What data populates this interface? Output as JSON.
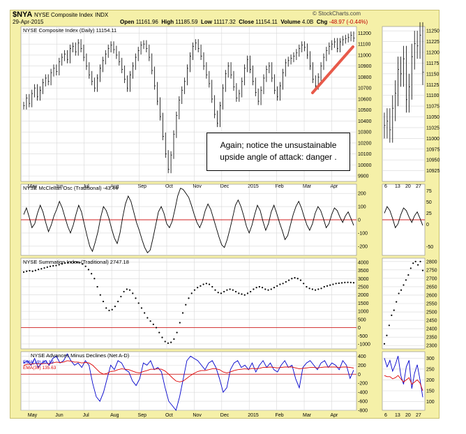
{
  "header": {
    "symbol": "$NYA",
    "index_name": "NYSE Composite Index",
    "exchange": "INDX",
    "date": "29-Apr-2015",
    "open_label": "Open",
    "open_value": "11161.96",
    "high_label": "High",
    "high_value": "11185.59",
    "low_label": "Low",
    "low_value": "11117.32",
    "close_label": "Close",
    "close_value": "11154.11",
    "volume_label": "Volume",
    "volume_value": "4.0B",
    "chg_label": "Chg",
    "chg_value": "-48.97 (-0.44%)",
    "brand": "© StockCharts.com"
  },
  "annotation": {
    "line1": "Again; notice the unsustainable",
    "line2": "upside angle of attack: danger ."
  },
  "colors": {
    "panel_bg": "#f5f0a8",
    "plot_bg": "#ffffff",
    "price": "#000000",
    "zero_line": "#d02020",
    "arrow": "#e85a4a",
    "ema19": "#0000cc",
    "ema39": "#dd0000"
  },
  "chart_data": [
    {
      "type": "ohlc",
      "title": "NYSE Composite Index (Daily) 11154.11",
      "timeframe": "daily",
      "x_labels": [
        "May",
        "Jun",
        "Jul",
        "Aug",
        "Sep",
        "Oct",
        "Nov",
        "Dec",
        "2015",
        "Feb",
        "Mar",
        "Apr"
      ],
      "yticks": [
        9900,
        10000,
        10100,
        10200,
        10300,
        10400,
        10500,
        10600,
        10700,
        10800,
        10900,
        11000,
        11100,
        11200
      ],
      "ylim": [
        9850,
        11260
      ],
      "series": [
        {
          "name": "close",
          "values": [
            10540,
            10610,
            10560,
            10650,
            10700,
            10620,
            10680,
            10750,
            10790,
            10760,
            10840,
            10880,
            10850,
            10940,
            10980,
            11010,
            10960,
            11060,
            11080,
            11030,
            11110,
            11060,
            10980,
            10900,
            10820,
            10760,
            10700,
            10790,
            10880,
            10950,
            11010,
            11060,
            11090,
            11050,
            11000,
            10940,
            10870,
            10780,
            10700,
            10820,
            10900,
            10980,
            11040,
            11090,
            11100,
            11060,
            10980,
            10860,
            10720,
            10580,
            10440,
            10260,
            10100,
            9960,
            10090,
            10280,
            10450,
            10590,
            10680,
            10760,
            10880,
            10990,
            11080,
            11110,
            11060,
            10990,
            10900,
            10820,
            10740,
            10600,
            10460,
            10380,
            10540,
            10700,
            10830,
            10900,
            10820,
            10710,
            10610,
            10650,
            10760,
            10880,
            10960,
            10870,
            10760,
            10660,
            10580,
            10680,
            10790,
            10870,
            10900,
            10790,
            10680,
            10620,
            10720,
            10840,
            10930,
            10950,
            10970,
            10990,
            11020,
            11060,
            11090,
            11070,
            11000,
            10900,
            10780,
            10720,
            10800,
            10900,
            10980,
            11040,
            11080,
            11100,
            11120,
            11060,
            11120,
            11140,
            11150,
            11160,
            11180,
            11154
          ]
        }
      ]
    },
    {
      "type": "ohlc",
      "title": "",
      "timeframe": "weekly",
      "x_labels": [
        "6",
        "13",
        "20",
        "27"
      ],
      "yticks": [
        10925,
        10950,
        10975,
        11000,
        11025,
        11050,
        11075,
        11100,
        11125,
        11150,
        11175,
        11200,
        11225,
        11250
      ],
      "ylim": [
        10900,
        11260
      ],
      "series": [
        {
          "name": "close",
          "values": [
            11030,
            11040,
            11020,
            11070,
            11105,
            11160,
            11150,
            11185,
            11090,
            11120,
            11190,
            11220,
            11215,
            11240,
            11154
          ]
        }
      ]
    },
    {
      "type": "line",
      "title": "NYSE McClellan Osc (Traditional) -43.44",
      "yticks": [
        -200,
        -100,
        0,
        100,
        200
      ],
      "ylim": [
        -270,
        270
      ],
      "series": [
        {
          "name": "McClellan Osc",
          "values": [
            40,
            90,
            20,
            -60,
            -30,
            50,
            110,
            60,
            -20,
            -90,
            -40,
            30,
            80,
            140,
            90,
            20,
            -50,
            -100,
            -40,
            40,
            110,
            60,
            -30,
            -120,
            -200,
            -240,
            -170,
            -90,
            20,
            100,
            70,
            10,
            -70,
            -140,
            -180,
            -100,
            20,
            120,
            180,
            140,
            60,
            -20,
            -80,
            -150,
            -210,
            -250,
            -230,
            -140,
            -40,
            60,
            100,
            50,
            -30,
            -60,
            -10,
            80,
            180,
            240,
            230,
            200,
            170,
            110,
            40,
            -20,
            -60,
            -10,
            70,
            120,
            80,
            10,
            -60,
            -130,
            -190,
            -210,
            -150,
            -70,
            20,
            110,
            150,
            100,
            30,
            -50,
            -100,
            -40,
            40,
            110,
            70,
            -10,
            -80,
            -30,
            60,
            110,
            50,
            -20,
            -80,
            -150,
            -120,
            -40,
            40,
            100,
            140,
            90,
            20,
            -40,
            -80,
            -30,
            50,
            100,
            70,
            10,
            -60,
            -30,
            40,
            90,
            70,
            20,
            -20,
            30,
            60,
            10,
            -43
          ]
        }
      ]
    },
    {
      "type": "scatter",
      "title": "NYSE Summation Index (Traditional) 2747.18",
      "yticks": [
        -1000,
        -500,
        0,
        500,
        1000,
        1500,
        2000,
        2500,
        3000,
        3500,
        4000
      ],
      "ylim": [
        -1300,
        4250
      ],
      "series": [
        {
          "name": "Summation Index",
          "values": [
            3400,
            3450,
            3480,
            3450,
            3500,
            3560,
            3600,
            3650,
            3700,
            3750,
            3780,
            3800,
            3850,
            3900,
            3950,
            3980,
            4000,
            4000,
            4000,
            3980,
            3900,
            3750,
            3550,
            3300,
            3000,
            2500,
            2000,
            1600,
            1200,
            1050,
            1100,
            1300,
            1600,
            1900,
            2200,
            2350,
            2300,
            2100,
            1800,
            1500,
            1200,
            900,
            600,
            400,
            200,
            0,
            -300,
            -600,
            -850,
            -950,
            -900,
            -700,
            -300,
            300,
            900,
            1400,
            1800,
            2100,
            2300,
            2450,
            2550,
            2650,
            2700,
            2650,
            2500,
            2300,
            2150,
            2100,
            2200,
            2300,
            2350,
            2300,
            2200,
            2100,
            2050,
            2000,
            2100,
            2200,
            2350,
            2450,
            2500,
            2450,
            2350,
            2300,
            2350,
            2450,
            2550,
            2650,
            2700,
            2800,
            2900,
            3000,
            3050,
            3000,
            2900,
            2700,
            2500,
            2400,
            2350,
            2300,
            2350,
            2400,
            2500,
            2550,
            2600,
            2650,
            2700,
            2720,
            2740,
            2760,
            2770,
            2760,
            2747
          ]
        }
      ]
    },
    {
      "type": "scatter",
      "title": "",
      "yticks": [
        2300,
        2350,
        2400,
        2450,
        2500,
        2550,
        2600,
        2650,
        2700,
        2750,
        2800
      ],
      "ylim": [
        2280,
        2820
      ],
      "series": [
        {
          "name": "Summation Index",
          "values": [
            2310,
            2360,
            2420,
            2480,
            2510,
            2560,
            2610,
            2630,
            2660,
            2690,
            2720,
            2760,
            2790,
            2800,
            2780,
            2800,
            2747
          ]
        }
      ]
    },
    {
      "type": "line",
      "title": "NYSE Advances Minus Declines (Net A-D)",
      "yticks": [
        -800,
        -600,
        -400,
        -200,
        0,
        200,
        400
      ],
      "ylim": [
        -800,
        500
      ],
      "series": [
        {
          "name": "EMA(19) 92.19",
          "values": [
            250,
            300,
            200,
            350,
            150,
            250,
            300,
            200,
            350,
            400,
            250,
            300,
            450,
            300,
            200,
            250,
            150,
            300,
            200,
            -200,
            -500,
            -600,
            -400,
            -100,
            200,
            100,
            300,
            250,
            100,
            50,
            -150,
            -250,
            -100,
            250,
            200,
            300,
            100,
            150,
            50,
            -300,
            -600,
            -700,
            -800,
            -500,
            -100,
            300,
            400,
            350,
            300,
            200,
            100,
            250,
            300,
            150,
            -100,
            -400,
            -300,
            100,
            250,
            300,
            150,
            200,
            100,
            250,
            50,
            200,
            300,
            150,
            250,
            100,
            50,
            200,
            300,
            150,
            200,
            -100,
            -300,
            150,
            250,
            300,
            200,
            100,
            250,
            300,
            150,
            250,
            200,
            100,
            300,
            200,
            -92,
            92
          ]
        },
        {
          "name": "EMA(39) 135.63",
          "values": [
            200,
            220,
            220,
            240,
            230,
            230,
            240,
            230,
            250,
            270,
            260,
            270,
            300,
            290,
            270,
            270,
            250,
            260,
            250,
            200,
            120,
            40,
            0,
            20,
            60,
            70,
            100,
            120,
            110,
            100,
            70,
            40,
            30,
            60,
            80,
            110,
            110,
            120,
            110,
            70,
            0,
            -80,
            -150,
            -170,
            -150,
            -90,
            -30,
            20,
            60,
            80,
            80,
            100,
            120,
            120,
            100,
            50,
            30,
            50,
            80,
            100,
            110,
            120,
            110,
            130,
            120,
            130,
            150,
            150,
            160,
            150,
            140,
            150,
            160,
            160,
            160,
            140,
            120,
            130,
            140,
            150,
            150,
            140,
            150,
            160,
            160,
            160,
            160,
            150,
            160,
            160,
            150,
            136
          ]
        }
      ]
    },
    {
      "type": "line",
      "title": "",
      "yticks": [
        100,
        150,
        200,
        250,
        300
      ],
      "ylim": [
        60,
        330
      ],
      "series": [
        {
          "name": "EMA(19)",
          "values": [
            300,
            260,
            290,
            240,
            270,
            310,
            220,
            180,
            260,
            290,
            160,
            230,
            270,
            200,
            120
          ]
        },
        {
          "name": "EMA(39)",
          "values": [
            220,
            215,
            215,
            205,
            210,
            220,
            205,
            190,
            200,
            210,
            180,
            190,
            200,
            185,
            150
          ]
        }
      ]
    }
  ]
}
